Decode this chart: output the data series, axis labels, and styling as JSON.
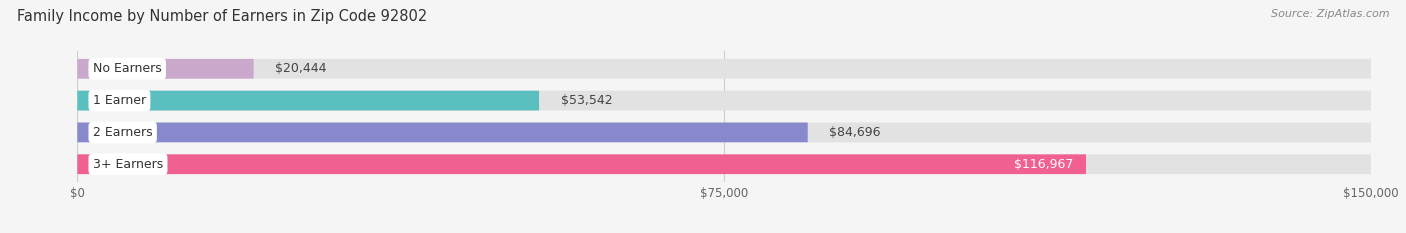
{
  "title": "Family Income by Number of Earners in Zip Code 92802",
  "source": "Source: ZipAtlas.com",
  "categories": [
    "No Earners",
    "1 Earner",
    "2 Earners",
    "3+ Earners"
  ],
  "values": [
    20444,
    53542,
    84696,
    116967
  ],
  "bar_colors": [
    "#c9a8cc",
    "#5abfbf",
    "#8888cc",
    "#f06090"
  ],
  "label_colors": [
    "#444444",
    "#444444",
    "#444444",
    "#ffffff"
  ],
  "xlim": [
    0,
    150000
  ],
  "xticks": [
    0,
    75000,
    150000
  ],
  "xticklabels": [
    "$0",
    "$75,000",
    "$150,000"
  ],
  "background_color": "#f5f5f5",
  "bar_bg_color": "#e2e2e2",
  "bar_height": 0.62,
  "figsize": [
    14.06,
    2.33
  ],
  "dpi": 100
}
